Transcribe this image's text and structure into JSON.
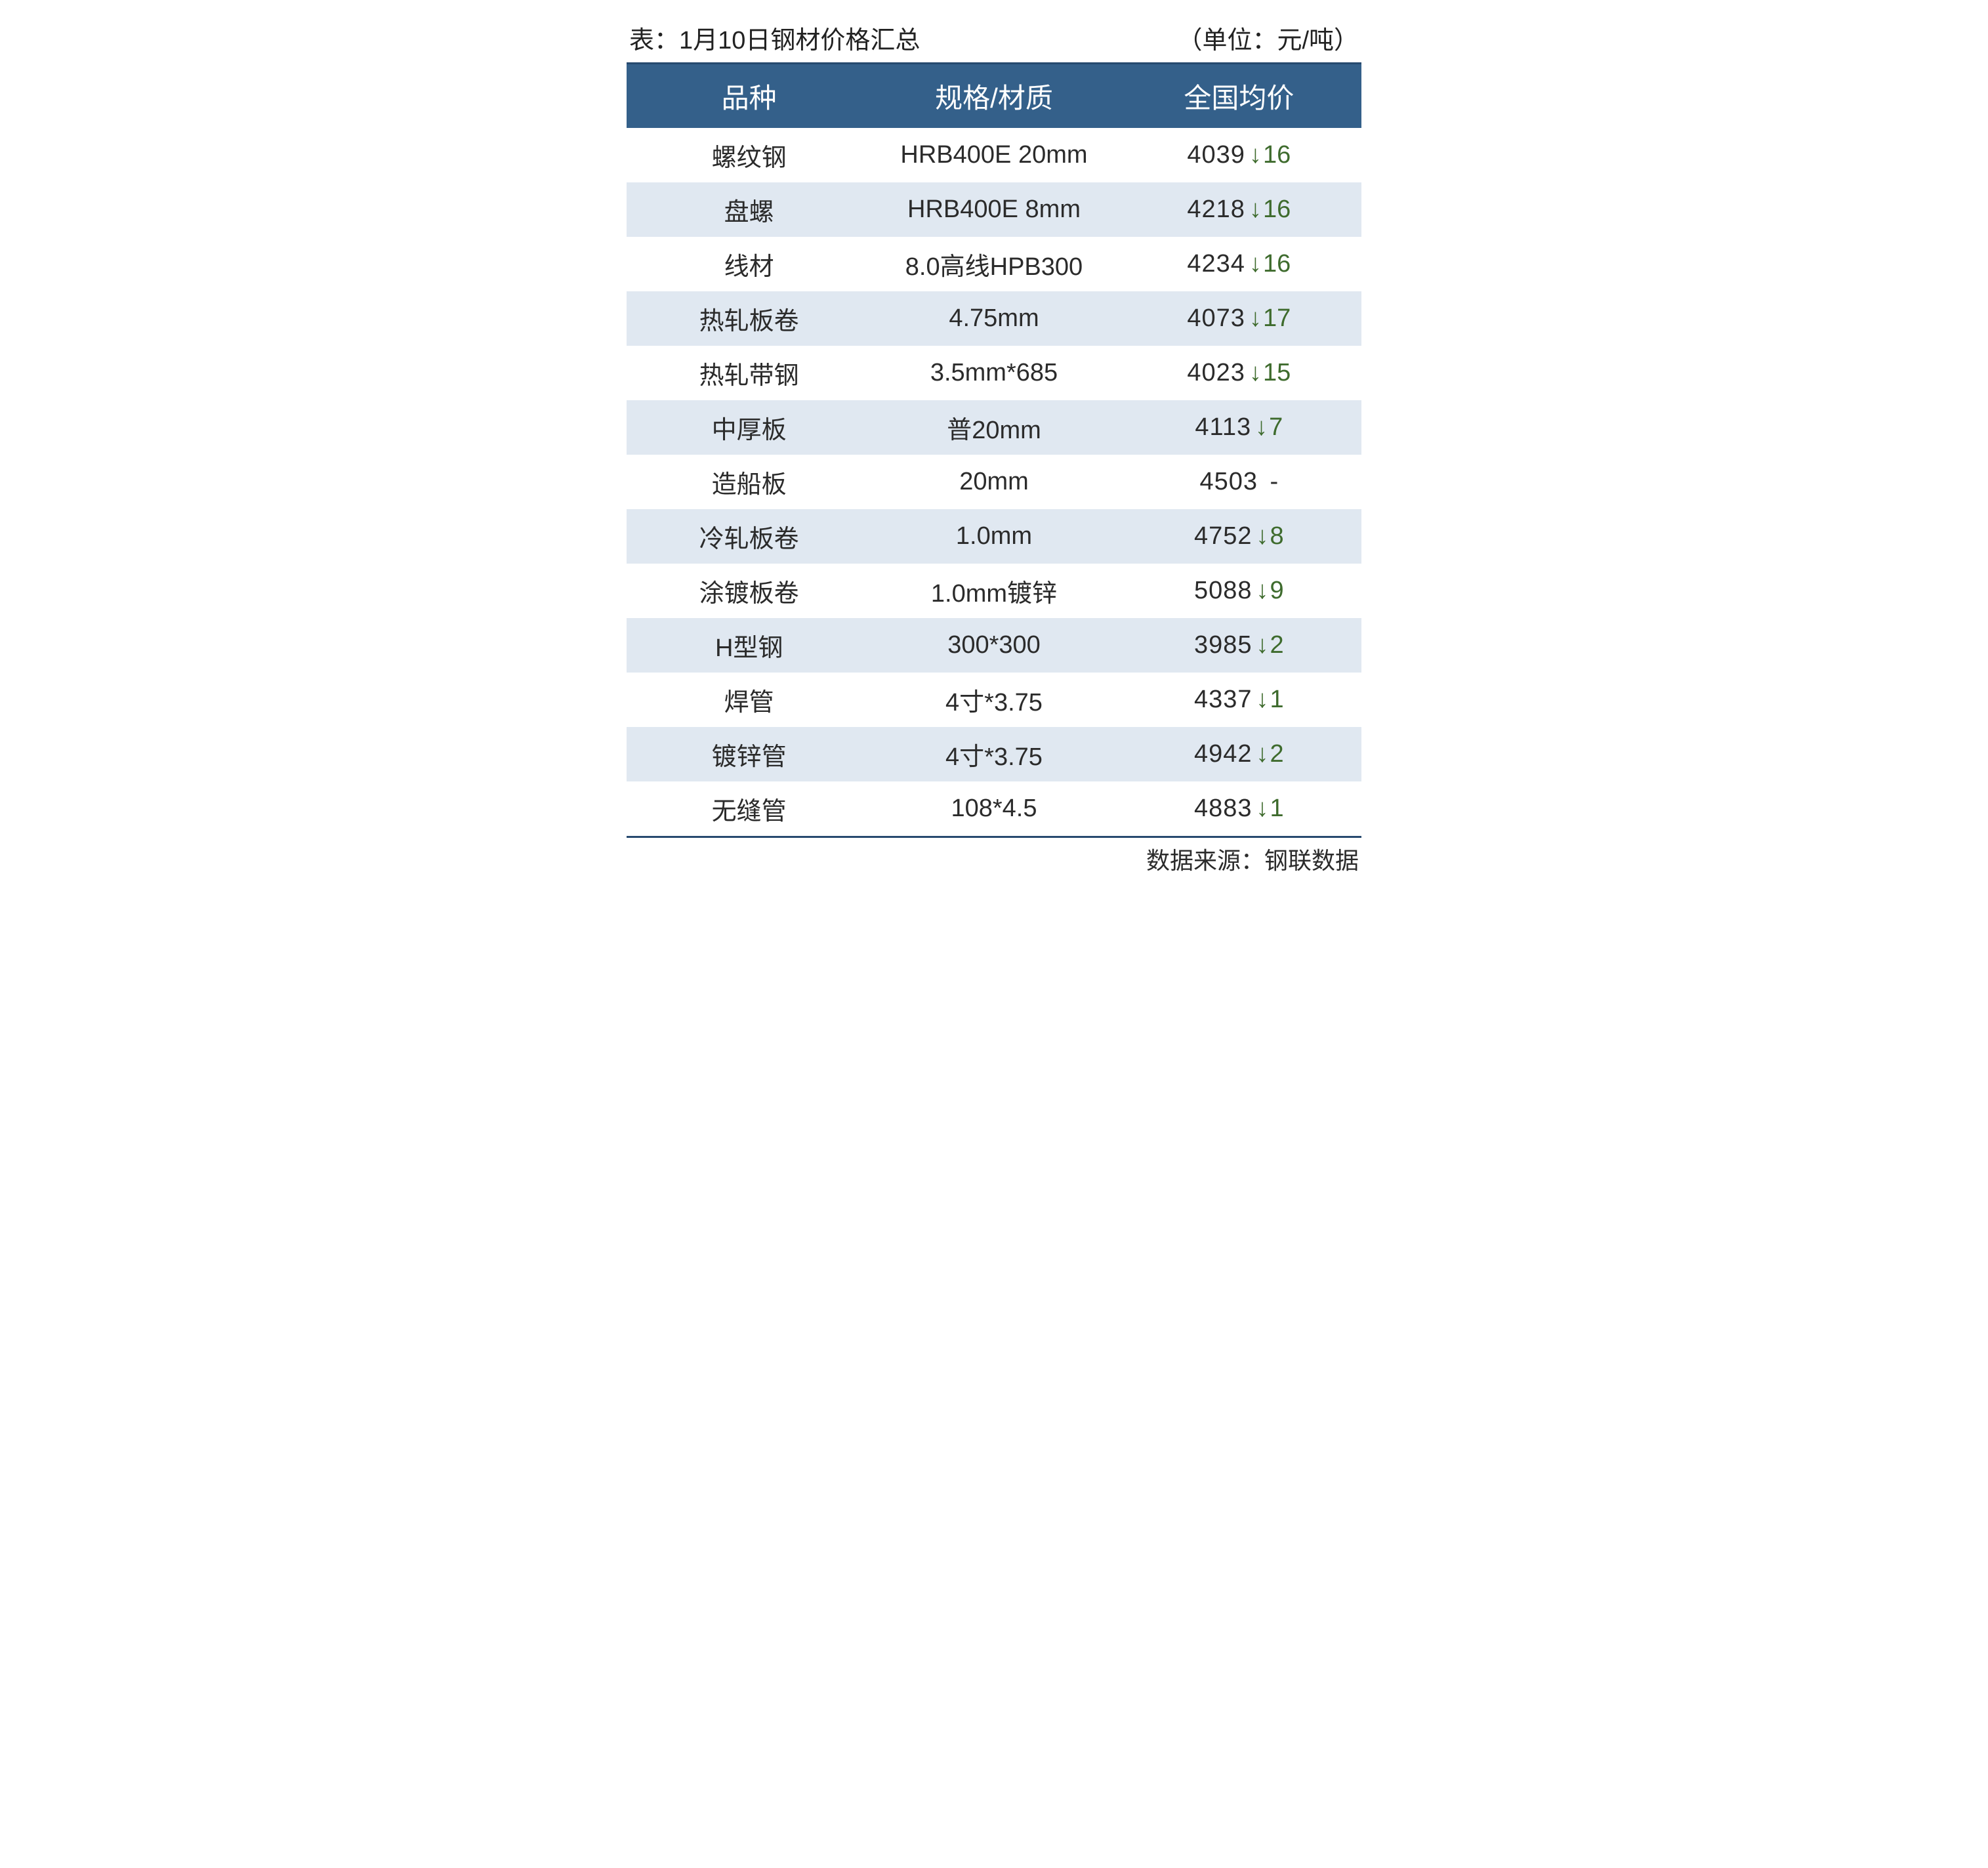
{
  "table": {
    "type": "table",
    "title_left": "表：1月10日钢材价格汇总",
    "title_right": "（单位：元/吨）",
    "columns": [
      "品种",
      "规格/材质",
      "全国均价"
    ],
    "header_bg": "#34608a",
    "header_text_color": "#ffffff",
    "header_fontsize": 42,
    "body_fontsize": 38,
    "body_text_color": "#2b2b2b",
    "row_even_bg": "#e0e8f1",
    "row_odd_bg": "#ffffff",
    "border_color": "#274a6f",
    "down_color": "#3e6b2d",
    "flat_color": "#2b2b2b",
    "rows": [
      {
        "product": "螺纹钢",
        "spec": "HRB400E 20mm",
        "price": "4039",
        "dir": "down",
        "arrow": "↓",
        "delta": "16"
      },
      {
        "product": "盘螺",
        "spec": "HRB400E 8mm",
        "price": "4218",
        "dir": "down",
        "arrow": "↓",
        "delta": "16"
      },
      {
        "product": "线材",
        "spec": "8.0高线HPB300",
        "price": "4234",
        "dir": "down",
        "arrow": "↓",
        "delta": "16"
      },
      {
        "product": "热轧板卷",
        "spec": "4.75mm",
        "price": "4073",
        "dir": "down",
        "arrow": "↓",
        "delta": "17"
      },
      {
        "product": "热轧带钢",
        "spec": "3.5mm*685",
        "price": "4023",
        "dir": "down",
        "arrow": "↓",
        "delta": "15"
      },
      {
        "product": "中厚板",
        "spec": "普20mm",
        "price": "4113",
        "dir": "down",
        "arrow": "↓",
        "delta": "7"
      },
      {
        "product": "造船板",
        "spec": "20mm",
        "price": "4503",
        "dir": "flat",
        "arrow": "",
        "delta": "-"
      },
      {
        "product": "冷轧板卷",
        "spec": "1.0mm",
        "price": "4752",
        "dir": "down",
        "arrow": "↓",
        "delta": "8"
      },
      {
        "product": "涂镀板卷",
        "spec": "1.0mm镀锌",
        "price": "5088",
        "dir": "down",
        "arrow": "↓",
        "delta": "9"
      },
      {
        "product": "H型钢",
        "spec": "300*300",
        "price": "3985",
        "dir": "down",
        "arrow": "↓",
        "delta": "2"
      },
      {
        "product": "焊管",
        "spec": "4寸*3.75",
        "price": "4337",
        "dir": "down",
        "arrow": "↓",
        "delta": "1"
      },
      {
        "product": "镀锌管",
        "spec": "4寸*3.75",
        "price": "4942",
        "dir": "down",
        "arrow": "↓",
        "delta": "2"
      },
      {
        "product": "无缝管",
        "spec": "108*4.5",
        "price": "4883",
        "dir": "down",
        "arrow": "↓",
        "delta": "1"
      }
    ],
    "footer": "数据来源：钢联数据"
  }
}
